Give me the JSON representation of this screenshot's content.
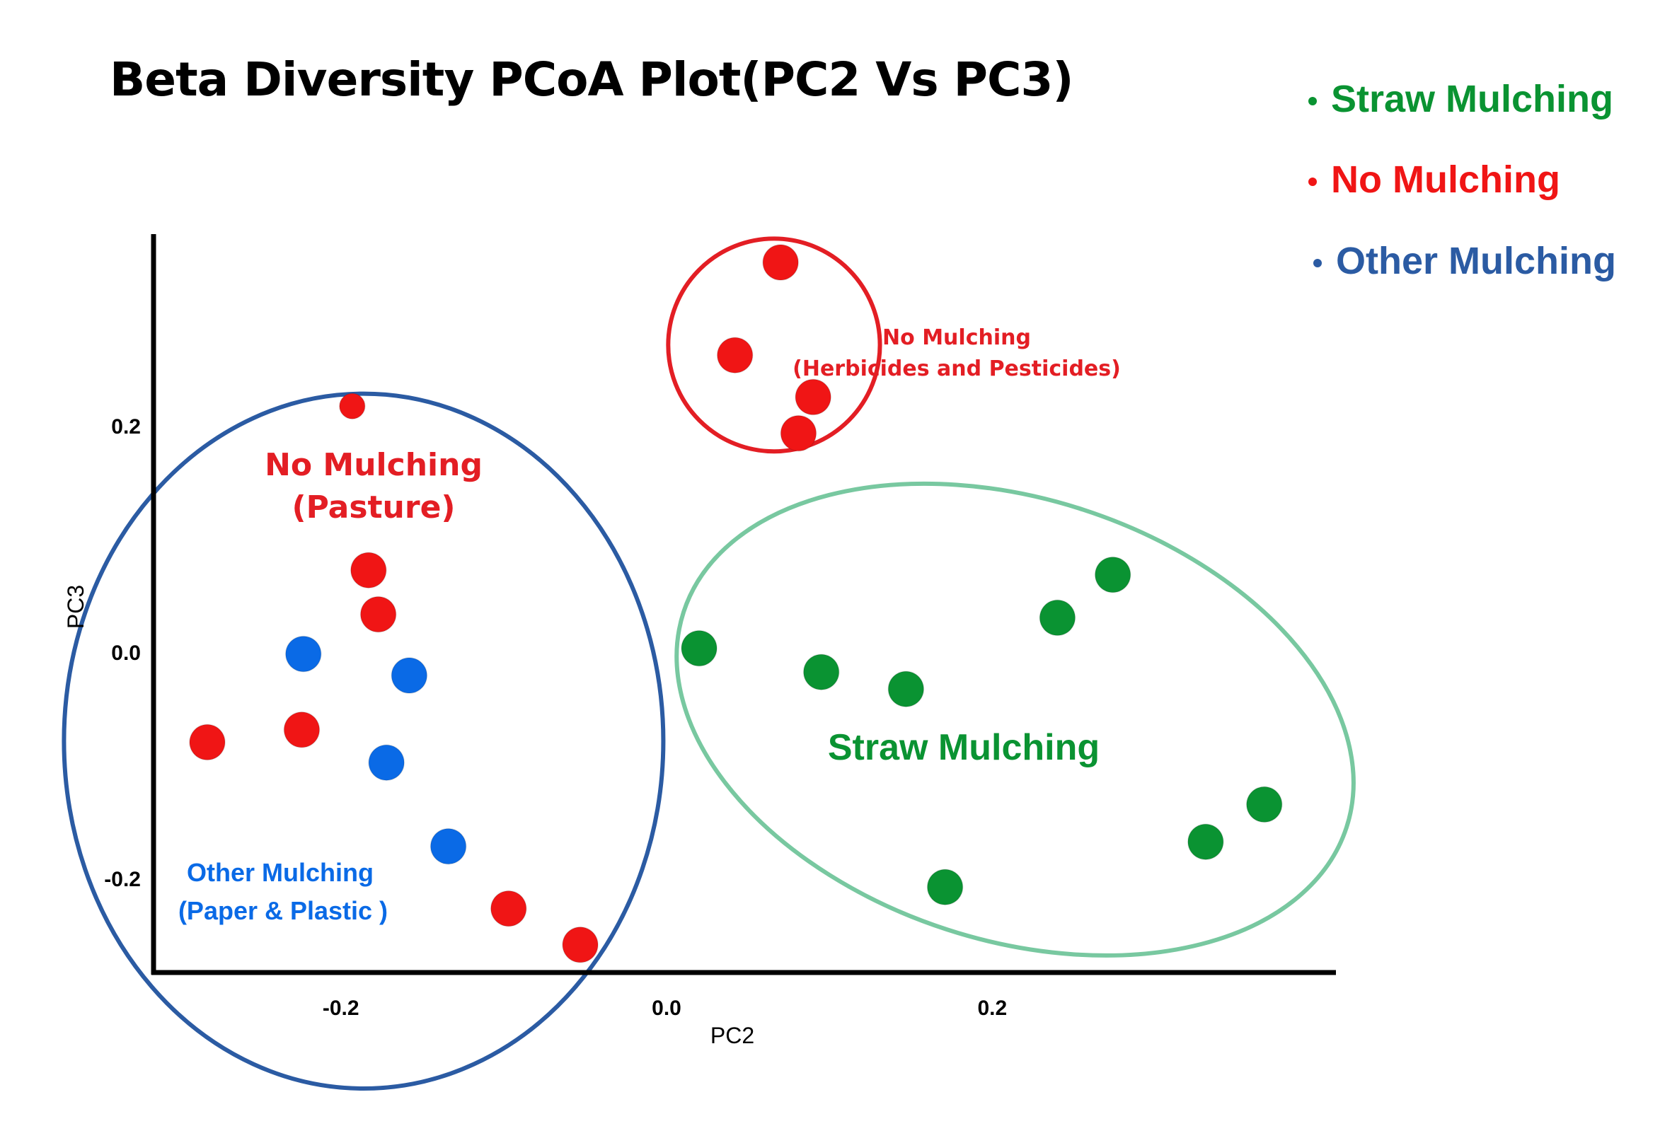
{
  "chart_data": {
    "type": "scatter",
    "title": "Beta Diversity PCoA Plot(PC2 Vs PC3)",
    "xlabel": "PC2",
    "ylabel": "PC3",
    "xlim": [
      -0.315,
      0.411
    ],
    "ylim": [
      -0.2825,
      0.37
    ],
    "x_ticks": [
      {
        "value": -0.2,
        "label": "-0.2"
      },
      {
        "value": 0.0,
        "label": "0.0"
      },
      {
        "value": 0.2,
        "label": "0.2"
      }
    ],
    "y_ticks": [
      {
        "value": 0.2,
        "label": "0.2"
      },
      {
        "value": 0.0,
        "label": "0.0"
      },
      {
        "value": -0.2,
        "label": "-0.2"
      }
    ],
    "grid": false,
    "legend": {
      "position": "top-right",
      "entries": [
        {
          "label": "Straw Mulching",
          "color": "#0a9332"
        },
        {
          "label": "No Mulching",
          "color": "#f01515"
        },
        {
          "label": "Other Mulching",
          "color": "#2b5ba3"
        }
      ]
    },
    "series": [
      {
        "name": "Straw Mulching",
        "color": "#0a9332",
        "points": [
          {
            "x": 0.02,
            "y": 0.004
          },
          {
            "x": 0.095,
            "y": -0.017
          },
          {
            "x": 0.147,
            "y": -0.032
          },
          {
            "x": 0.24,
            "y": 0.031
          },
          {
            "x": 0.274,
            "y": 0.069
          },
          {
            "x": 0.367,
            "y": -0.134
          },
          {
            "x": 0.331,
            "y": -0.167
          },
          {
            "x": 0.171,
            "y": -0.207
          }
        ]
      },
      {
        "name": "No Mulching (Herbicides and Pesticides)",
        "color": "#f01515",
        "points": [
          {
            "x": 0.07,
            "y": 0.345
          },
          {
            "x": 0.042,
            "y": 0.263
          },
          {
            "x": 0.09,
            "y": 0.226
          },
          {
            "x": 0.081,
            "y": 0.194
          }
        ]
      },
      {
        "name": "No Mulching (Pasture)",
        "color": "#f01515",
        "points": [
          {
            "x": -0.193,
            "y": 0.218,
            "small": true
          },
          {
            "x": -0.183,
            "y": 0.073
          },
          {
            "x": -0.177,
            "y": 0.034
          },
          {
            "x": -0.224,
            "y": -0.068
          },
          {
            "x": -0.282,
            "y": -0.079
          },
          {
            "x": -0.097,
            "y": -0.226
          },
          {
            "x": -0.053,
            "y": -0.258
          }
        ]
      },
      {
        "name": "Other Mulching (Paper & Plastic)",
        "color": "#0a6ae6",
        "points": [
          {
            "x": -0.223,
            "y": -0.001
          },
          {
            "x": -0.158,
            "y": -0.02
          },
          {
            "x": -0.172,
            "y": -0.097
          },
          {
            "x": -0.134,
            "y": -0.171
          }
        ]
      }
    ],
    "ellipses": [
      {
        "name": "other-pasture-group",
        "cx": -0.186,
        "cy": -0.078,
        "rx": 0.184,
        "ry": 0.307,
        "rotate": 0,
        "color": "#2b5ba3"
      },
      {
        "name": "straw-group",
        "cx": 0.214,
        "cy": -0.059,
        "rx": 0.214,
        "ry": 0.195,
        "rotate": 18,
        "color": "#78c8a0"
      },
      {
        "name": "herbicides-group",
        "cx": 0.066,
        "cy": 0.272,
        "rx": 0.065,
        "ry": 0.094,
        "rotate": 0,
        "color": "#e31e24"
      }
    ],
    "annotations": [
      {
        "name": "annotation-no-mulching-herbicides",
        "lines": [
          "No Mulching",
          "(Herbicides and Pesticides)"
        ],
        "color": "#e31e24"
      },
      {
        "name": "annotation-no-mulching-pasture",
        "lines": [
          "No Mulching",
          "(Pasture)"
        ],
        "color": "#e31e24"
      },
      {
        "name": "annotation-other-mulching",
        "lines": [
          "Other Mulching",
          "(Paper & Plastic )"
        ],
        "color": "#0a6ae6"
      },
      {
        "name": "annotation-straw-mulching",
        "lines": [
          "Straw Mulching"
        ],
        "color": "#0a9332"
      }
    ]
  }
}
